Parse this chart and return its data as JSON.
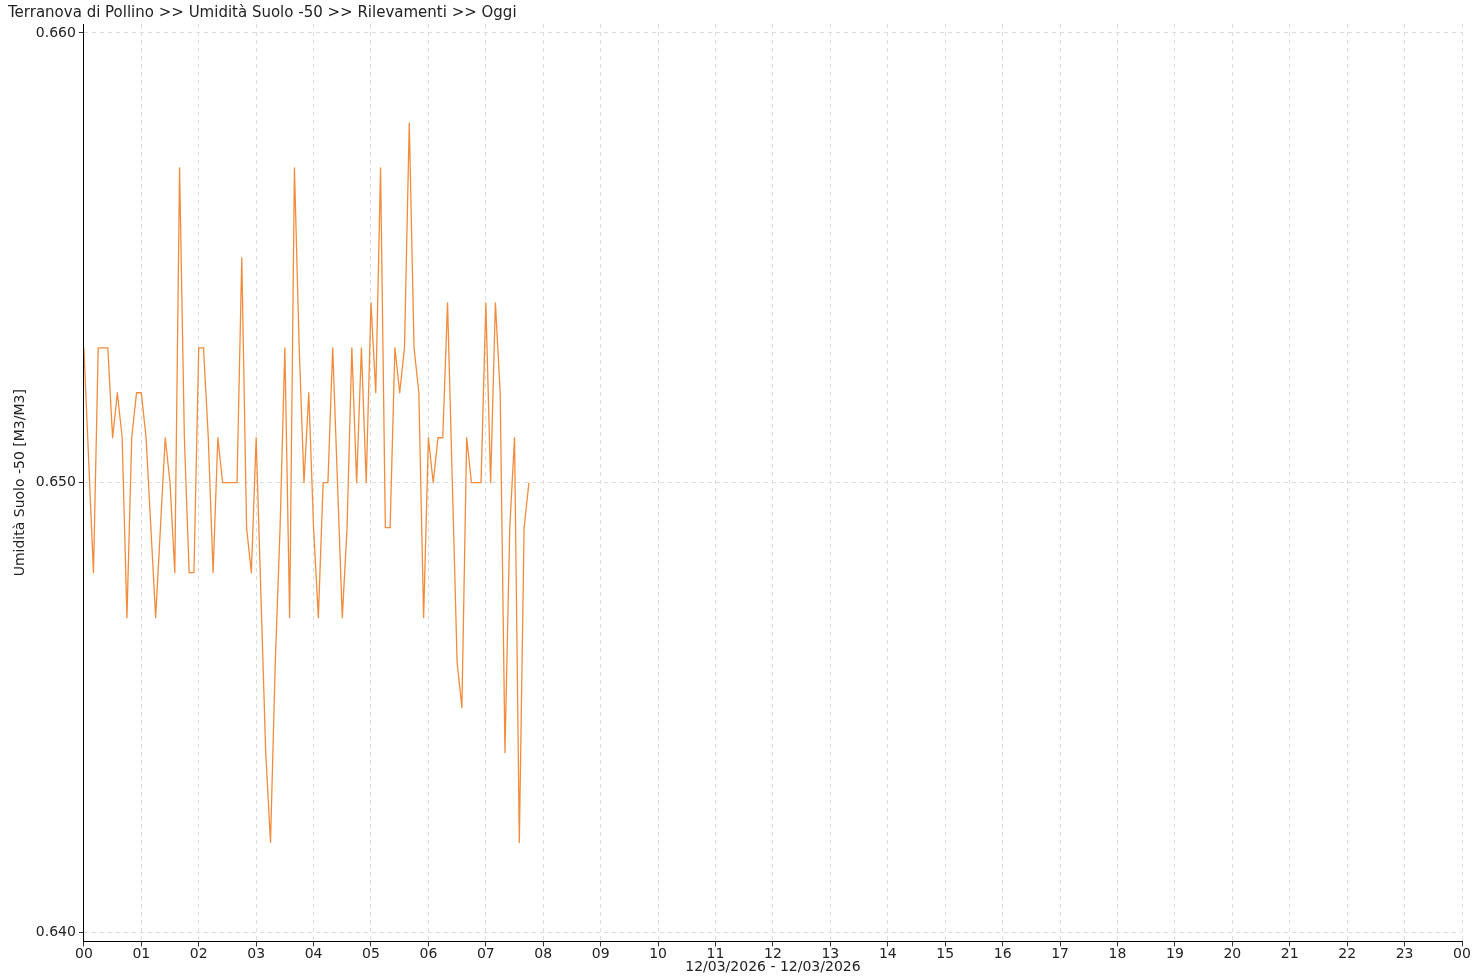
{
  "chart_data": {
    "type": "line",
    "title": "Terranova di Pollino >> Umidità Suolo -50 >> Rilevamenti >> Oggi",
    "xlabel": "12/03/2026 - 12/03/2026",
    "ylabel": "Umidità Suolo -50 [M3/M3]",
    "x": [
      0,
      0.0833,
      0.1667,
      0.25,
      0.3333,
      0.4167,
      0.5,
      0.5833,
      0.6667,
      0.75,
      0.8333,
      0.9167,
      1,
      1.0833,
      1.1667,
      1.25,
      1.3333,
      1.4167,
      1.5,
      1.5833,
      1.6667,
      1.75,
      1.8333,
      1.9167,
      2,
      2.0833,
      2.1667,
      2.25,
      2.3333,
      2.4167,
      2.5,
      2.5833,
      2.6667,
      2.75,
      2.8333,
      2.9167,
      3,
      3.0833,
      3.1667,
      3.25,
      3.3333,
      3.4167,
      3.5,
      3.5833,
      3.6667,
      3.75,
      3.8333,
      3.9167,
      4,
      4.0833,
      4.1667,
      4.25,
      4.3333,
      4.4167,
      4.5,
      4.5833,
      4.6667,
      4.75,
      4.8333,
      4.9167,
      5,
      5.0833,
      5.1667,
      5.25,
      5.3333,
      5.4167,
      5.5,
      5.5833,
      5.6667,
      5.75,
      5.8333,
      5.9167,
      6,
      6.0833,
      6.1667,
      6.25,
      6.3333,
      6.4167,
      6.5,
      6.5833,
      6.6667,
      6.75,
      6.8333,
      6.9167,
      7,
      7.0833,
      7.1667,
      7.25,
      7.3333,
      7.4167,
      7.5,
      7.5833,
      7.6667,
      7.75
    ],
    "series": [
      {
        "color": "#f28c3c",
        "values": [
          0.653,
          0.6505,
          0.648,
          0.653,
          0.653,
          0.653,
          0.651,
          0.652,
          0.651,
          0.647,
          0.651,
          0.652,
          0.652,
          0.651,
          0.649,
          0.647,
          0.649,
          0.651,
          0.65,
          0.648,
          0.657,
          0.651,
          0.648,
          0.648,
          0.653,
          0.653,
          0.651,
          0.648,
          0.651,
          0.65,
          0.65,
          0.65,
          0.65,
          0.655,
          0.649,
          0.648,
          0.651,
          0.6475,
          0.644,
          0.642,
          0.646,
          0.649,
          0.653,
          0.647,
          0.657,
          0.653,
          0.65,
          0.652,
          0.649,
          0.647,
          0.65,
          0.65,
          0.653,
          0.65,
          0.647,
          0.649,
          0.653,
          0.65,
          0.653,
          0.65,
          0.654,
          0.652,
          0.657,
          0.649,
          0.649,
          0.653,
          0.652,
          0.653,
          0.658,
          0.653,
          0.652,
          0.647,
          0.651,
          0.65,
          0.651,
          0.651,
          0.654,
          0.65,
          0.646,
          0.645,
          0.651,
          0.65,
          0.65,
          0.65,
          0.654,
          0.65,
          0.654,
          0.652,
          0.644,
          0.649,
          0.651,
          0.642,
          0.649,
          0.65
        ]
      }
    ],
    "xlim": [
      0,
      24
    ],
    "xticks": [
      {
        "value": 0,
        "label": "00"
      },
      {
        "value": 1,
        "label": "01"
      },
      {
        "value": 2,
        "label": "02"
      },
      {
        "value": 3,
        "label": "03"
      },
      {
        "value": 4,
        "label": "04"
      },
      {
        "value": 5,
        "label": "05"
      },
      {
        "value": 6,
        "label": "06"
      },
      {
        "value": 7,
        "label": "07"
      },
      {
        "value": 8,
        "label": "08"
      },
      {
        "value": 9,
        "label": "09"
      },
      10,
      11,
      12,
      13,
      14,
      15,
      16,
      17,
      18,
      19,
      20,
      21,
      22,
      23,
      {
        "value": 24,
        "label": "00"
      }
    ],
    "ylim": [
      0.6398,
      0.6602
    ],
    "yticks": [
      {
        "value": 0.64,
        "label": "0.640"
      },
      {
        "value": 0.65,
        "label": "0.650"
      },
      {
        "value": 0.66,
        "label": "0.660"
      }
    ],
    "grid": true,
    "legend": false,
    "marker": "none",
    "line_style": "solid"
  }
}
